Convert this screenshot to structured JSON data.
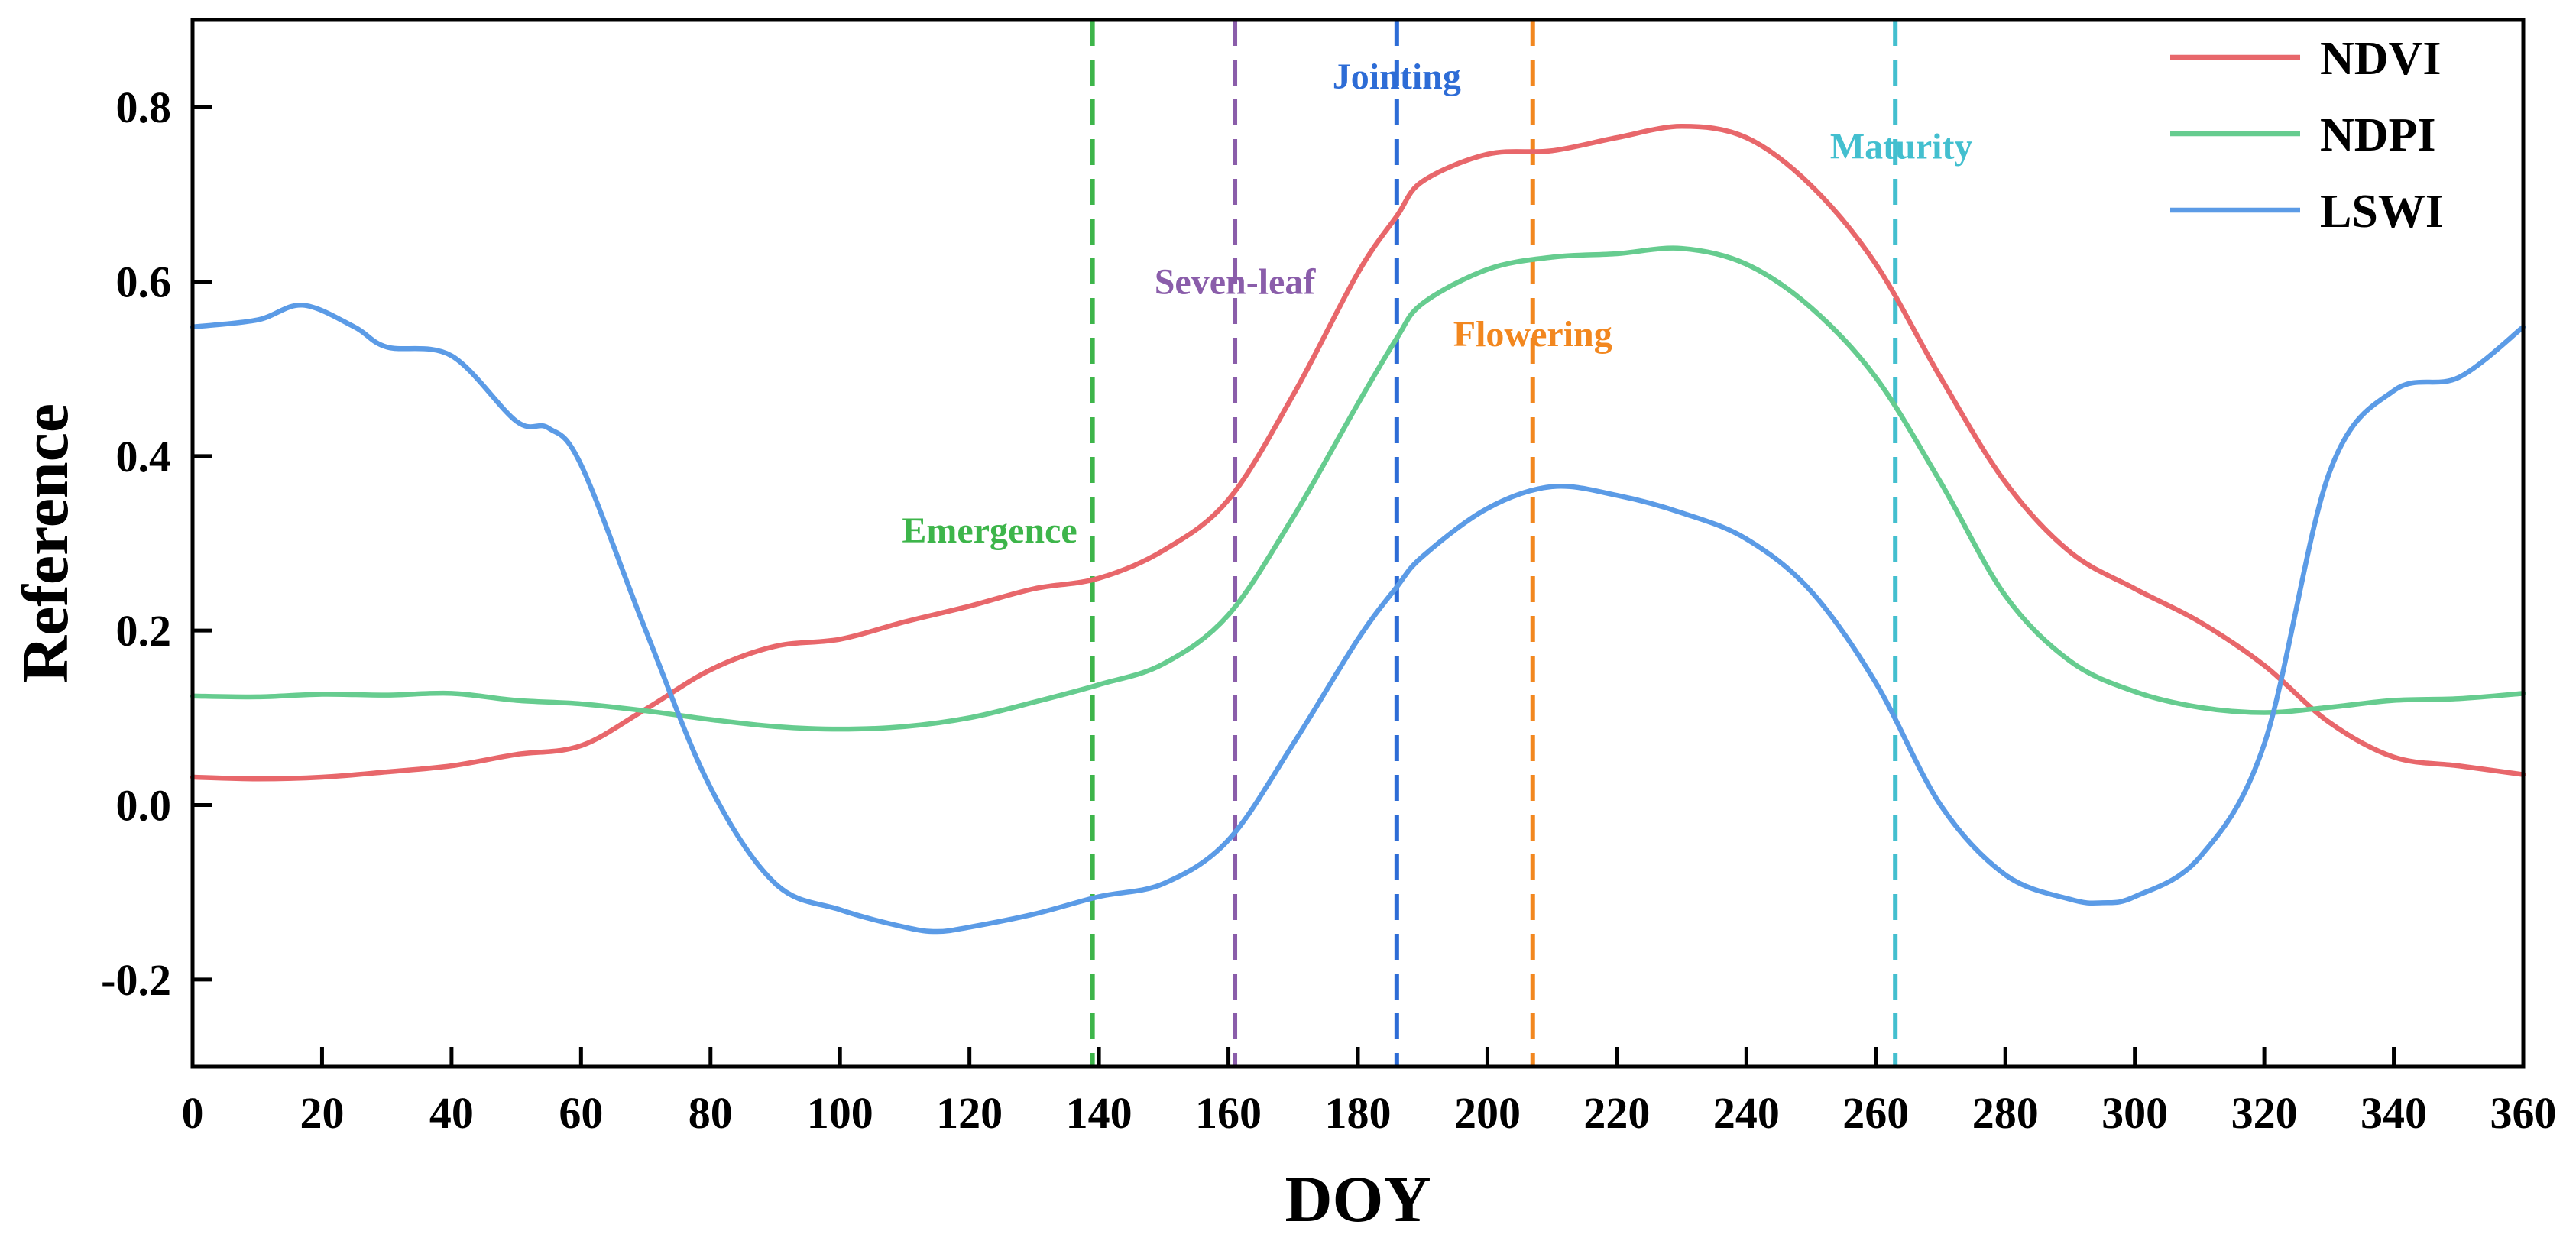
{
  "chart_data": {
    "type": "line",
    "title": "",
    "xlabel": "DOY",
    "ylabel": "Reference",
    "xlim": [
      0,
      360
    ],
    "ylim": [
      -0.3,
      0.9
    ],
    "x_ticks": [
      0,
      20,
      40,
      60,
      80,
      100,
      120,
      140,
      160,
      180,
      200,
      220,
      240,
      260,
      280,
      300,
      320,
      340,
      360
    ],
    "x_tick_labels": [
      "0",
      "20",
      "40",
      "60",
      "80",
      "100",
      "120",
      "140",
      "160",
      "180",
      "200",
      "220",
      "240",
      "260",
      "280",
      "300",
      "320",
      "340",
      "360"
    ],
    "y_ticks": [
      -0.2,
      0.0,
      0.2,
      0.4,
      0.6,
      0.8
    ],
    "y_tick_labels": [
      "-0.2",
      "0.0",
      "0.2",
      "0.4",
      "0.6",
      "0.8"
    ],
    "legend_position": "top-right",
    "series": [
      {
        "name": "NDVI",
        "color": "#E8676B",
        "x": [
          0,
          10,
          20,
          30,
          40,
          50,
          60,
          70,
          80,
          90,
          100,
          110,
          120,
          130,
          140,
          150,
          160,
          170,
          180,
          186,
          190,
          200,
          210,
          220,
          230,
          240,
          250,
          260,
          270,
          280,
          290,
          300,
          310,
          320,
          330,
          340,
          350,
          360
        ],
        "values": [
          0.032,
          0.03,
          0.032,
          0.038,
          0.045,
          0.058,
          0.068,
          0.11,
          0.155,
          0.182,
          0.19,
          0.21,
          0.228,
          0.248,
          0.26,
          0.292,
          0.35,
          0.47,
          0.61,
          0.675,
          0.715,
          0.746,
          0.75,
          0.765,
          0.778,
          0.765,
          0.71,
          0.62,
          0.49,
          0.37,
          0.29,
          0.248,
          0.21,
          0.16,
          0.095,
          0.055,
          0.045,
          0.035
        ]
      },
      {
        "name": "NDPI",
        "color": "#66CC8F",
        "x": [
          0,
          10,
          20,
          30,
          40,
          50,
          60,
          70,
          80,
          90,
          100,
          110,
          120,
          130,
          140,
          150,
          160,
          170,
          180,
          186,
          190,
          200,
          210,
          220,
          230,
          240,
          250,
          260,
          270,
          280,
          290,
          300,
          310,
          320,
          330,
          340,
          350,
          360
        ],
        "values": [
          0.125,
          0.124,
          0.127,
          0.126,
          0.128,
          0.12,
          0.116,
          0.108,
          0.098,
          0.09,
          0.087,
          0.09,
          0.1,
          0.118,
          0.138,
          0.162,
          0.218,
          0.33,
          0.46,
          0.535,
          0.575,
          0.614,
          0.628,
          0.632,
          0.638,
          0.62,
          0.57,
          0.49,
          0.37,
          0.24,
          0.165,
          0.13,
          0.112,
          0.106,
          0.112,
          0.12,
          0.122,
          0.128
        ]
      },
      {
        "name": "LSWI",
        "color": "#5B9BE6",
        "x": [
          0,
          10,
          17,
          25,
          30,
          40,
          50,
          55,
          60,
          70,
          80,
          90,
          100,
          110,
          115,
          120,
          130,
          140,
          150,
          160,
          170,
          180,
          186,
          190,
          200,
          210,
          220,
          230,
          240,
          250,
          260,
          270,
          280,
          290,
          295,
          300,
          310,
          320,
          330,
          340,
          350,
          360
        ],
        "values": [
          0.548,
          0.556,
          0.573,
          0.548,
          0.525,
          0.515,
          0.44,
          0.432,
          0.39,
          0.2,
          0.02,
          -0.09,
          -0.12,
          -0.14,
          -0.145,
          -0.14,
          -0.125,
          -0.105,
          -0.09,
          -0.04,
          0.07,
          0.19,
          0.25,
          0.285,
          0.34,
          0.365,
          0.355,
          0.335,
          0.305,
          0.245,
          0.14,
          0.0,
          -0.08,
          -0.108,
          -0.112,
          -0.105,
          -0.06,
          0.07,
          0.38,
          0.475,
          0.49,
          0.548
        ]
      }
    ],
    "stages": [
      {
        "name": "Emergence",
        "doy": 139,
        "color": "#3DB54A",
        "label_y": 0.315
      },
      {
        "name": "Seven-leaf",
        "doy": 161,
        "color": "#8A5DAA",
        "label_y": 0.6
      },
      {
        "name": "Jointing",
        "doy": 186,
        "color": "#2D6CD6",
        "label_y": 0.835
      },
      {
        "name": "Flowering",
        "doy": 207,
        "color": "#F2871F",
        "label_y": 0.54
      },
      {
        "name": "Maturity",
        "doy": 263,
        "color": "#43BFCF",
        "label_y": 0.755
      }
    ]
  }
}
